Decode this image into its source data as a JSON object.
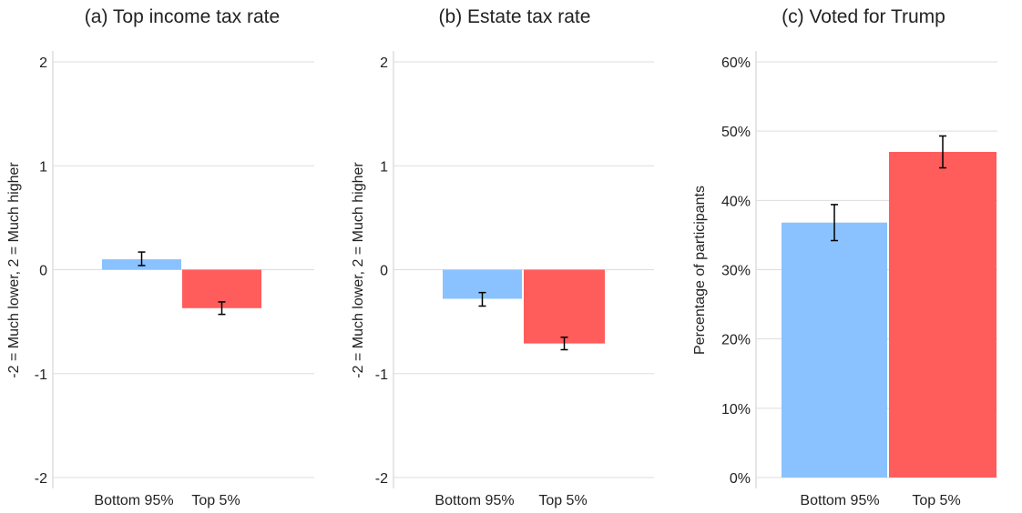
{
  "colors": {
    "bottom": "#8ac2ff",
    "top": "#ff5c5c"
  },
  "chart_data": [
    {
      "type": "bar",
      "title": "(a) Top income tax rate",
      "ylabel": "-2 = Much lower, 2 = Much higher",
      "categories": [
        "Bottom 95%",
        "Top 5%"
      ],
      "values": [
        0.1,
        -0.37
      ],
      "error_low": [
        0.04,
        -0.43
      ],
      "error_high": [
        0.17,
        -0.31
      ],
      "ylim": [
        -2,
        2
      ],
      "yticks": [
        -2,
        -1,
        0,
        1,
        2
      ],
      "ytick_labels": [
        "-2",
        "-1",
        "0",
        "1",
        "2"
      ],
      "grid": true
    },
    {
      "type": "bar",
      "title": "(b) Estate tax rate",
      "ylabel": "-2 = Much lower, 2 = Much higher",
      "categories": [
        "Bottom 95%",
        "Top 5%"
      ],
      "values": [
        -0.28,
        -0.71
      ],
      "error_low": [
        -0.35,
        -0.77
      ],
      "error_high": [
        -0.22,
        -0.65
      ],
      "ylim": [
        -2,
        2
      ],
      "yticks": [
        -2,
        -1,
        0,
        1,
        2
      ],
      "ytick_labels": [
        "-2",
        "-1",
        "0",
        "1",
        "2"
      ],
      "grid": true
    },
    {
      "type": "bar",
      "title": "(c) Voted for Trump",
      "ylabel": "Percentage of participants",
      "categories": [
        "Bottom 95%",
        "Top 5%"
      ],
      "values": [
        36.8,
        47.0
      ],
      "error_low": [
        34.2,
        44.7
      ],
      "error_high": [
        39.4,
        49.3
      ],
      "ylim": [
        0,
        60
      ],
      "yticks": [
        0,
        10,
        20,
        30,
        40,
        50,
        60
      ],
      "ytick_labels": [
        "0%",
        "10%",
        "20%",
        "30%",
        "40%",
        "50%",
        "60%"
      ],
      "grid": true
    }
  ]
}
